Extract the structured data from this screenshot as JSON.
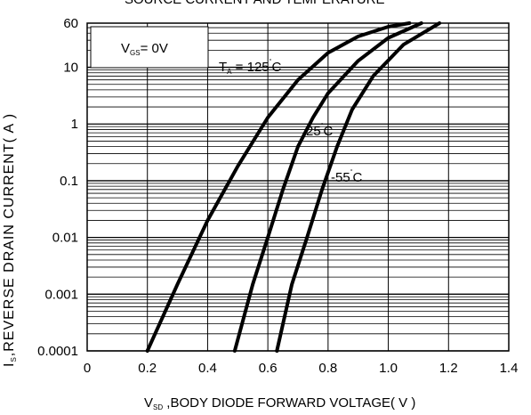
{
  "chart_data": {
    "type": "line",
    "title": "SOURCE CURRENT AND TEMPERATURE",
    "ylabel": {
      "main": "I",
      "sub": "S",
      "rest": ",REVERSE DRAIN CURRENT( A )"
    },
    "xlabel": {
      "main": "V",
      "sub": "SD",
      "rest": " ,BODY DIODE FORWARD VOLTAGE( V )"
    },
    "x_scale": "linear",
    "y_scale": "log",
    "xlim": [
      0,
      1.4
    ],
    "ylim": [
      0.0001,
      60
    ],
    "x_ticks": [
      0,
      0.2,
      0.4,
      0.6,
      0.8,
      1.0,
      1.2,
      1.4
    ],
    "x_tick_labels": [
      "0",
      "0.2",
      "0.4",
      "0.6",
      "0.8",
      "1.0",
      "1.2",
      "1.4"
    ],
    "y_ticks": [
      0.0001,
      0.001,
      0.01,
      0.1,
      1,
      10,
      60
    ],
    "y_tick_labels": [
      "0.0001",
      "0.001",
      "0.01",
      "0.1",
      "1",
      "10",
      "60"
    ],
    "grid": true,
    "condition": {
      "main": "V",
      "sub": "GS",
      "rest": "= 0V"
    },
    "series": [
      {
        "name": "T_A = 125°C",
        "label": {
          "prefix": "T",
          "sub": "A",
          "value": " = 125",
          "unit": "C"
        },
        "x": [
          0.2,
          0.3,
          0.4,
          0.5,
          0.6,
          0.7,
          0.8,
          0.9,
          1.0,
          1.07
        ],
        "y": [
          0.0001,
          0.0015,
          0.02,
          0.18,
          1.3,
          6,
          18,
          35,
          52,
          60
        ]
      },
      {
        "name": "25°C",
        "label": {
          "prefix": "",
          "sub": "",
          "value": "25",
          "unit": "C"
        },
        "x": [
          0.49,
          0.55,
          0.6,
          0.65,
          0.7,
          0.75,
          0.8,
          0.9,
          1.0,
          1.11
        ],
        "y": [
          0.0001,
          0.0015,
          0.01,
          0.07,
          0.4,
          1.3,
          3.5,
          13,
          33,
          60
        ]
      },
      {
        "name": "-55°C",
        "label": {
          "prefix": "",
          "sub": "",
          "value": "-55",
          "unit": "C"
        },
        "x": [
          0.63,
          0.68,
          0.73,
          0.78,
          0.83,
          0.88,
          0.95,
          1.05,
          1.17
        ],
        "y": [
          0.0001,
          0.0015,
          0.01,
          0.07,
          0.4,
          1.8,
          7,
          25,
          60
        ]
      }
    ]
  }
}
